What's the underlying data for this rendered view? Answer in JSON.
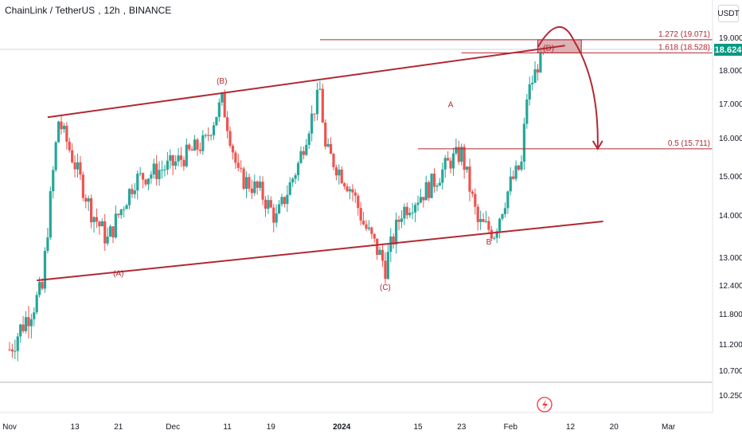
{
  "header": {
    "symbol": "ChainLink / TetherUS",
    "interval": "12h",
    "exchange": "BINANCE"
  },
  "price_axis": {
    "unit": "USDT",
    "current_price": "18.624",
    "current_price_color": "#089981"
  },
  "colors": {
    "up": "#26a69a",
    "down": "#ef5350",
    "annotation": "#b22833",
    "zone_fill": "#d5a0a3"
  },
  "chart_data": {
    "type": "candlestick",
    "title": "",
    "xlabel": "",
    "ylabel": "",
    "y_ticks": [
      "19.000",
      "18.000",
      "17.000",
      "16.000",
      "15.000",
      "14.000",
      "13.000",
      "12.400",
      "11.800",
      "11.200",
      "10.700",
      "10.250"
    ],
    "x_ticks": [
      "Nov",
      "13",
      "21",
      "Dec",
      "11",
      "19",
      "2024",
      "15",
      "23",
      "Feb",
      "12",
      "20",
      "Mar"
    ],
    "x_range": [
      "2023-11-01",
      "2024-03-01"
    ],
    "series": [
      {
        "interval": "12h",
        "ohlc_sample": [
          {
            "date": "2023-11-01",
            "close": 11.1
          },
          {
            "date": "2023-11-07",
            "close": 12.3
          },
          {
            "date": "2023-11-10",
            "close": 16.5
          },
          {
            "date": "2023-11-16",
            "close": 14.1
          },
          {
            "date": "2023-11-19",
            "close": 13.4
          },
          {
            "date": "2023-11-24",
            "close": 14.9
          },
          {
            "date": "2023-12-01",
            "close": 15.3
          },
          {
            "date": "2023-12-07",
            "close": 15.9
          },
          {
            "date": "2023-12-10",
            "close": 17.1
          },
          {
            "date": "2023-12-13",
            "close": 15.0
          },
          {
            "date": "2023-12-17",
            "close": 14.6
          },
          {
            "date": "2023-12-20",
            "close": 13.9
          },
          {
            "date": "2023-12-24",
            "close": 15.3
          },
          {
            "date": "2023-12-28",
            "close": 17.4
          },
          {
            "date": "2023-12-29",
            "close": 15.7
          },
          {
            "date": "2024-01-03",
            "close": 14.6
          },
          {
            "date": "2024-01-05",
            "close": 13.8
          },
          {
            "date": "2024-01-09",
            "close": 12.8
          },
          {
            "date": "2024-01-12",
            "close": 14.1
          },
          {
            "date": "2024-01-17",
            "close": 14.7
          },
          {
            "date": "2024-01-21",
            "close": 15.4
          },
          {
            "date": "2024-01-23",
            "close": 15.6
          },
          {
            "date": "2024-01-26",
            "close": 13.8
          },
          {
            "date": "2024-01-29",
            "close": 13.6
          },
          {
            "date": "2024-02-01",
            "close": 14.8
          },
          {
            "date": "2024-02-03",
            "close": 15.3
          },
          {
            "date": "2024-02-04",
            "close": 17.2
          },
          {
            "date": "2024-02-07",
            "close": 18.624
          }
        ]
      }
    ],
    "wave_labels": [
      {
        "text": "(A)",
        "date": "2023-11-21",
        "price": 12.6
      },
      {
        "text": "(B)",
        "date": "2023-12-10",
        "price": 17.6
      },
      {
        "text": "(C)",
        "date": "2024-01-09",
        "price": 12.3
      },
      {
        "text": "A",
        "date": "2024-01-21",
        "price": 16.9
      },
      {
        "text": "B",
        "date": "2024-01-28",
        "price": 13.3
      },
      {
        "text": "(D)",
        "date": "2024-02-08",
        "price": 19.4
      }
    ],
    "fib_levels": [
      {
        "label": "1.272 (19.071)",
        "value": 19.071
      },
      {
        "label": "1.618 (18.528)",
        "value": 18.528
      },
      {
        "label": "0.5 (15.711)",
        "value": 15.711
      }
    ],
    "channel_lines": [
      {
        "from": {
          "date": "2023-11-08",
          "price": 16.6
        },
        "to": {
          "date": "2024-02-11",
          "price": 18.75
        }
      },
      {
        "from": {
          "date": "2023-11-06",
          "price": 12.5
        },
        "to": {
          "date": "2024-02-18",
          "price": 13.85
        }
      }
    ],
    "projection": {
      "from_price": 18.7,
      "peak_price": 19.0,
      "target_price": 15.711
    }
  }
}
